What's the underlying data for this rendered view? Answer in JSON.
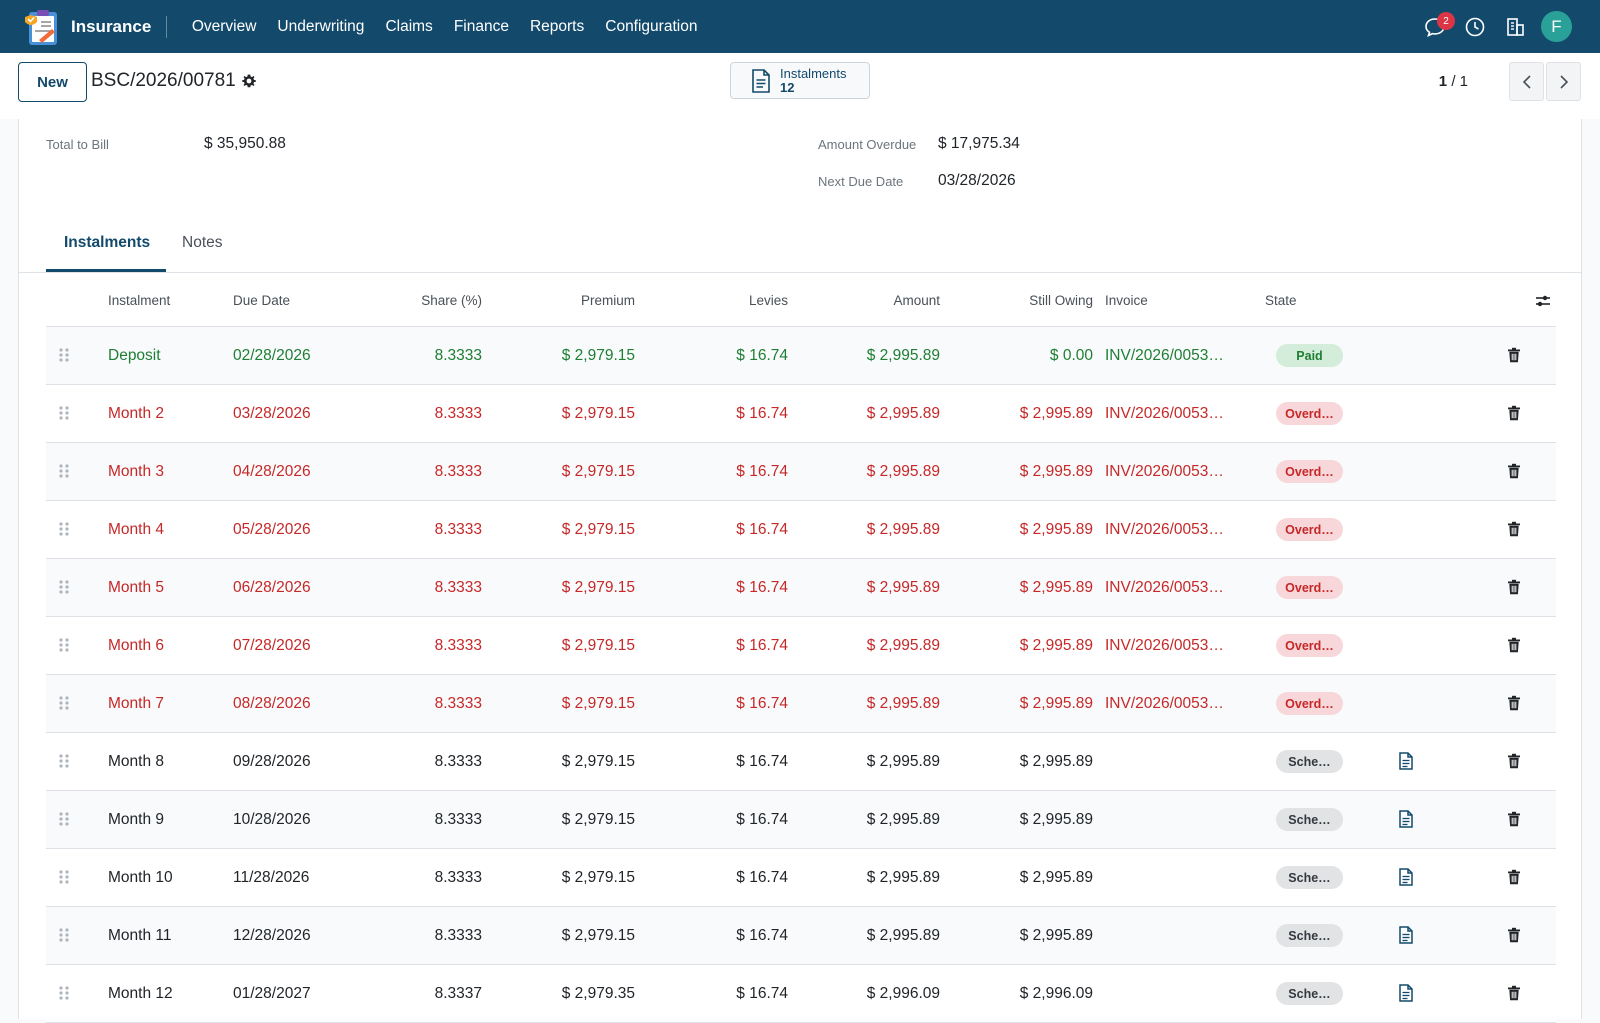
{
  "navbar": {
    "app_name": "Insurance",
    "menu": [
      "Overview",
      "Underwriting",
      "Claims",
      "Finance",
      "Reports",
      "Configuration"
    ],
    "messages_badge": "2",
    "avatar_letter": "F",
    "bg_color": "#134a6c"
  },
  "control_panel": {
    "new_label": "New",
    "record_name": "BSC/2026/00781",
    "smart_button": {
      "label": "Instalments",
      "count": "12"
    },
    "pager": {
      "current": "1",
      "total": "/ 1"
    }
  },
  "summary": {
    "total_to_bill": {
      "label": "Total to Bill",
      "value": "$ 35,950.88"
    },
    "amount_overdue": {
      "label": "Amount Overdue",
      "value": "$ 17,975.34"
    },
    "next_due_date": {
      "label": "Next Due Date",
      "value": "03/28/2026"
    }
  },
  "tabs": [
    "Instalments",
    "Notes"
  ],
  "table": {
    "headers": {
      "instalment": "Instalment",
      "due_date": "Due Date",
      "share": "Share (%)",
      "premium": "Premium",
      "levies": "Levies",
      "amount": "Amount",
      "still_owing": "Still Owing",
      "invoice": "Invoice",
      "state": "State"
    },
    "rows": [
      {
        "name": "Deposit",
        "due": "02/28/2026",
        "share": "8.3333",
        "premium": "$ 2,979.15",
        "levies": "$ 16.74",
        "amount": "$ 2,995.89",
        "owing": "$ 0.00",
        "invoice": "INV/2026/0053…",
        "state": "Paid",
        "state_kind": "paid",
        "tone": "green",
        "has_doc": false
      },
      {
        "name": "Month 2",
        "due": "03/28/2026",
        "share": "8.3333",
        "premium": "$ 2,979.15",
        "levies": "$ 16.74",
        "amount": "$ 2,995.89",
        "owing": "$ 2,995.89",
        "invoice": "INV/2026/0053…",
        "state": "Overd…",
        "state_kind": "overdue",
        "tone": "red",
        "has_doc": false
      },
      {
        "name": "Month 3",
        "due": "04/28/2026",
        "share": "8.3333",
        "premium": "$ 2,979.15",
        "levies": "$ 16.74",
        "amount": "$ 2,995.89",
        "owing": "$ 2,995.89",
        "invoice": "INV/2026/0053…",
        "state": "Overd…",
        "state_kind": "overdue",
        "tone": "red",
        "has_doc": false
      },
      {
        "name": "Month 4",
        "due": "05/28/2026",
        "share": "8.3333",
        "premium": "$ 2,979.15",
        "levies": "$ 16.74",
        "amount": "$ 2,995.89",
        "owing": "$ 2,995.89",
        "invoice": "INV/2026/0053…",
        "state": "Overd…",
        "state_kind": "overdue",
        "tone": "red",
        "has_doc": false
      },
      {
        "name": "Month 5",
        "due": "06/28/2026",
        "share": "8.3333",
        "premium": "$ 2,979.15",
        "levies": "$ 16.74",
        "amount": "$ 2,995.89",
        "owing": "$ 2,995.89",
        "invoice": "INV/2026/0053…",
        "state": "Overd…",
        "state_kind": "overdue",
        "tone": "red",
        "has_doc": false
      },
      {
        "name": "Month 6",
        "due": "07/28/2026",
        "share": "8.3333",
        "premium": "$ 2,979.15",
        "levies": "$ 16.74",
        "amount": "$ 2,995.89",
        "owing": "$ 2,995.89",
        "invoice": "INV/2026/0053…",
        "state": "Overd…",
        "state_kind": "overdue",
        "tone": "red",
        "has_doc": false
      },
      {
        "name": "Month 7",
        "due": "08/28/2026",
        "share": "8.3333",
        "premium": "$ 2,979.15",
        "levies": "$ 16.74",
        "amount": "$ 2,995.89",
        "owing": "$ 2,995.89",
        "invoice": "INV/2026/0053…",
        "state": "Overd…",
        "state_kind": "overdue",
        "tone": "red",
        "has_doc": false
      },
      {
        "name": "Month 8",
        "due": "09/28/2026",
        "share": "8.3333",
        "premium": "$ 2,979.15",
        "levies": "$ 16.74",
        "amount": "$ 2,995.89",
        "owing": "$ 2,995.89",
        "invoice": "",
        "state": "Sche…",
        "state_kind": "sched",
        "tone": "normal",
        "has_doc": true
      },
      {
        "name": "Month 9",
        "due": "10/28/2026",
        "share": "8.3333",
        "premium": "$ 2,979.15",
        "levies": "$ 16.74",
        "amount": "$ 2,995.89",
        "owing": "$ 2,995.89",
        "invoice": "",
        "state": "Sche…",
        "state_kind": "sched",
        "tone": "normal",
        "has_doc": true
      },
      {
        "name": "Month 10",
        "due": "11/28/2026",
        "share": "8.3333",
        "premium": "$ 2,979.15",
        "levies": "$ 16.74",
        "amount": "$ 2,995.89",
        "owing": "$ 2,995.89",
        "invoice": "",
        "state": "Sche…",
        "state_kind": "sched",
        "tone": "normal",
        "has_doc": true
      },
      {
        "name": "Month 11",
        "due": "12/28/2026",
        "share": "8.3333",
        "premium": "$ 2,979.15",
        "levies": "$ 16.74",
        "amount": "$ 2,995.89",
        "owing": "$ 2,995.89",
        "invoice": "",
        "state": "Sche…",
        "state_kind": "sched",
        "tone": "normal",
        "has_doc": true
      },
      {
        "name": "Month 12",
        "due": "01/28/2027",
        "share": "8.3337",
        "premium": "$ 2,979.35",
        "levies": "$ 16.74",
        "amount": "$ 2,996.09",
        "owing": "$ 2,996.09",
        "invoice": "",
        "state": "Sche…",
        "state_kind": "sched",
        "tone": "normal",
        "has_doc": true
      }
    ]
  }
}
